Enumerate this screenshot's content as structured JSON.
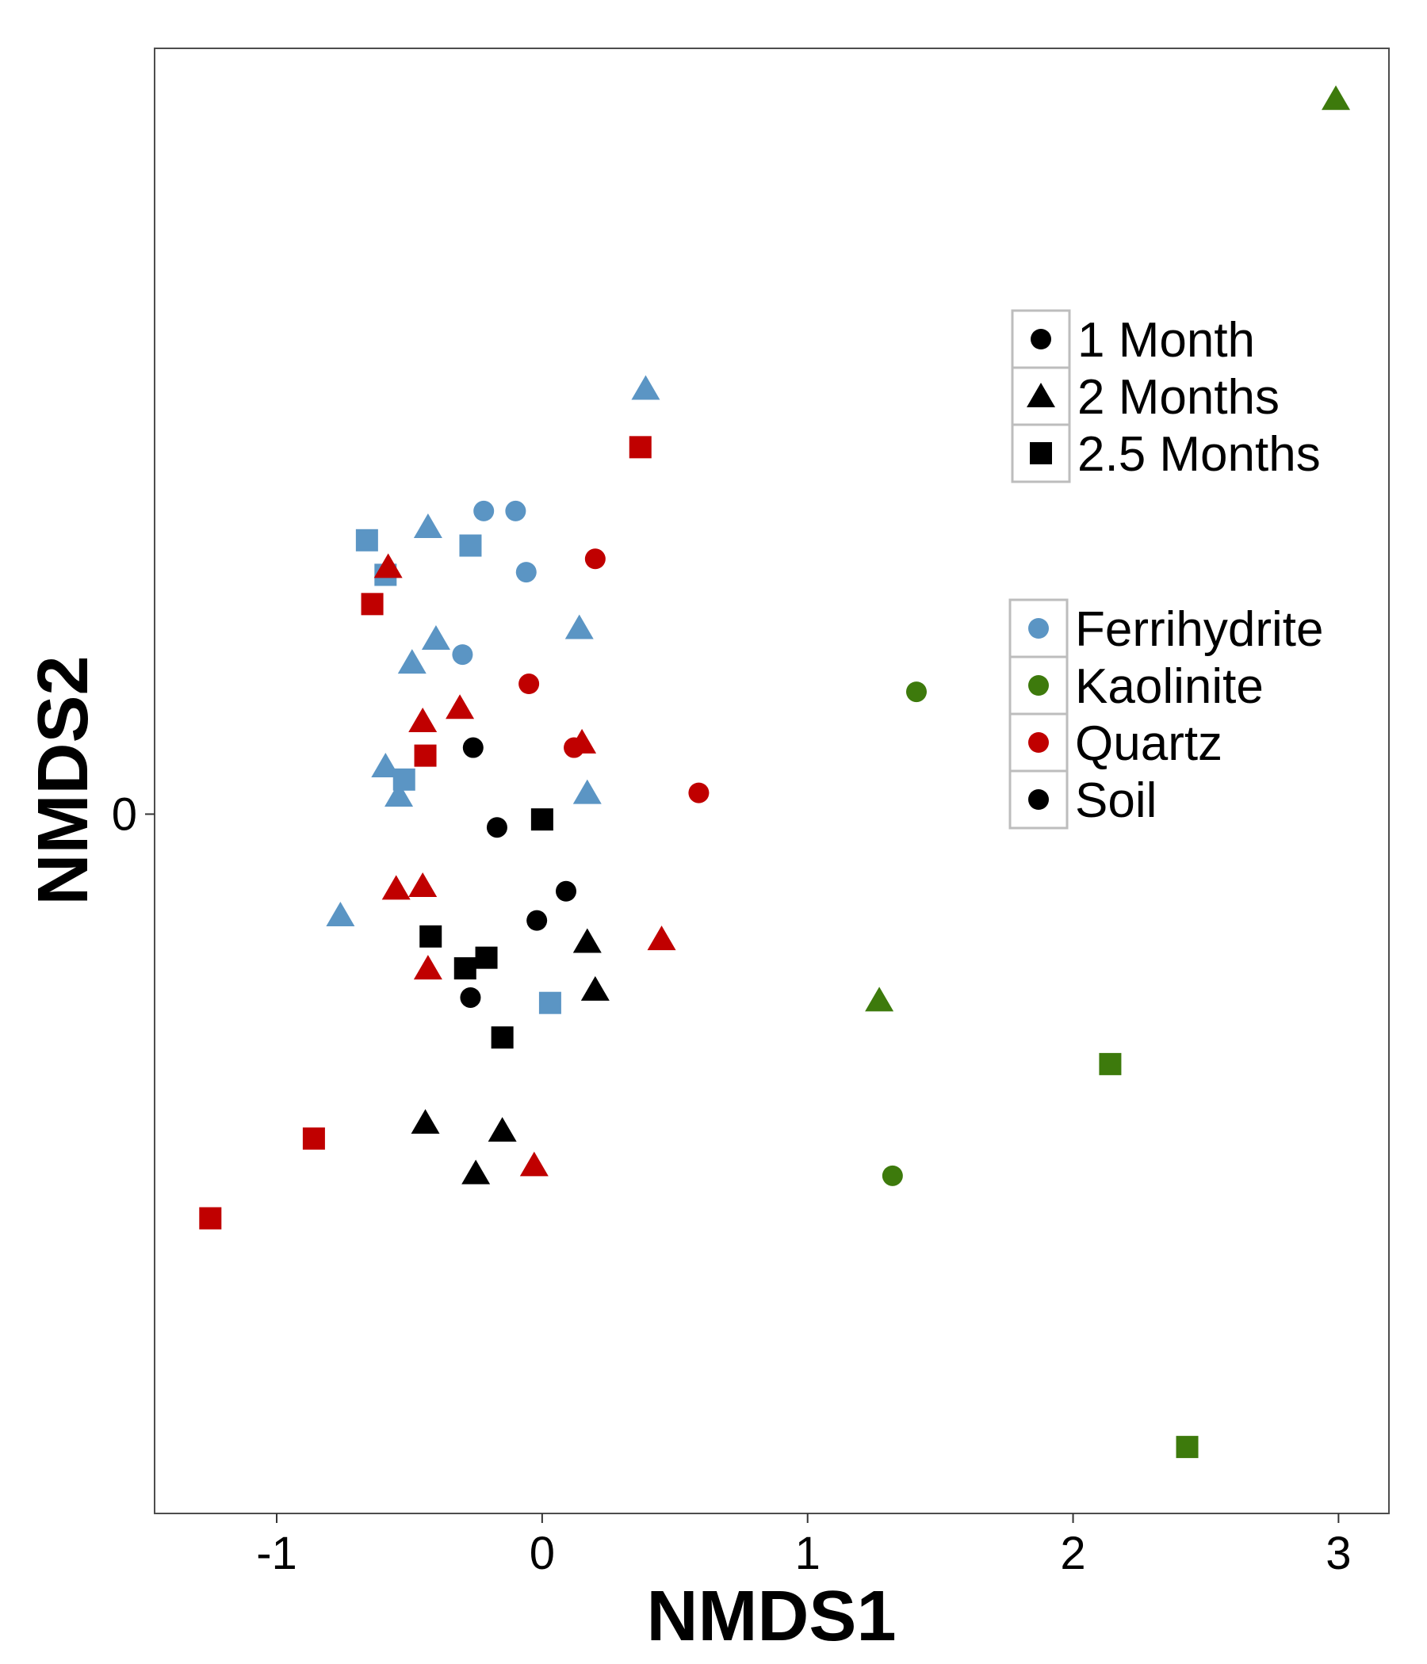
{
  "chart_data": {
    "type": "scatter",
    "xlabel": "NMDS1",
    "ylabel": "NMDS2",
    "xlim": [
      -1.46,
      3.19
    ],
    "ylim": [
      -2.63,
      2.88
    ],
    "xticks": [
      -1,
      0,
      1,
      2,
      3
    ],
    "xtick_labels": [
      "-1",
      "0",
      "1",
      "2",
      "3"
    ],
    "yticks": [
      0
    ],
    "ytick_labels": [
      "0"
    ],
    "grid": false,
    "legend_position": "right",
    "shape_legend": {
      "entries": [
        {
          "label": "1 Month",
          "shape": "circle"
        },
        {
          "label": "2 Months",
          "shape": "triangle"
        },
        {
          "label": "2.5 Months",
          "shape": "square"
        }
      ]
    },
    "color_legend": {
      "entries": [
        {
          "label": "Ferrihydrite",
          "color": "#5b95c4"
        },
        {
          "label": "Kaolinite",
          "color": "#3d7a0c"
        },
        {
          "label": "Quartz",
          "color": "#c00000"
        },
        {
          "label": "Soil",
          "color": "#000000"
        }
      ]
    },
    "series": [
      {
        "name": "Ferrihydrite",
        "color": "#5b95c4",
        "points": [
          {
            "x": -0.22,
            "y": 1.14,
            "shape": "circle"
          },
          {
            "x": -0.1,
            "y": 1.14,
            "shape": "circle"
          },
          {
            "x": -0.06,
            "y": 0.91,
            "shape": "circle"
          },
          {
            "x": -0.3,
            "y": 0.6,
            "shape": "circle"
          },
          {
            "x": 0.39,
            "y": 1.6,
            "shape": "triangle"
          },
          {
            "x": -0.43,
            "y": 1.08,
            "shape": "triangle"
          },
          {
            "x": 0.14,
            "y": 0.7,
            "shape": "triangle"
          },
          {
            "x": -0.4,
            "y": 0.66,
            "shape": "triangle"
          },
          {
            "x": -0.49,
            "y": 0.57,
            "shape": "triangle"
          },
          {
            "x": -0.59,
            "y": 0.18,
            "shape": "triangle"
          },
          {
            "x": -0.54,
            "y": 0.07,
            "shape": "triangle"
          },
          {
            "x": 0.17,
            "y": 0.08,
            "shape": "triangle"
          },
          {
            "x": -0.76,
            "y": -0.38,
            "shape": "triangle"
          },
          {
            "x": -0.66,
            "y": 1.03,
            "shape": "square"
          },
          {
            "x": -0.27,
            "y": 1.01,
            "shape": "square"
          },
          {
            "x": -0.59,
            "y": 0.9,
            "shape": "square"
          },
          {
            "x": -0.52,
            "y": 0.13,
            "shape": "square"
          },
          {
            "x": 0.03,
            "y": -0.71,
            "shape": "square"
          }
        ]
      },
      {
        "name": "Kaolinite",
        "color": "#3d7a0c",
        "points": [
          {
            "x": 1.41,
            "y": 0.46,
            "shape": "circle"
          },
          {
            "x": 1.32,
            "y": -1.36,
            "shape": "circle"
          },
          {
            "x": 2.99,
            "y": 2.69,
            "shape": "triangle"
          },
          {
            "x": 1.27,
            "y": -0.7,
            "shape": "triangle"
          },
          {
            "x": 2.14,
            "y": -0.94,
            "shape": "square"
          },
          {
            "x": 2.43,
            "y": -2.38,
            "shape": "square"
          }
        ]
      },
      {
        "name": "Quartz",
        "color": "#c00000",
        "points": [
          {
            "x": 0.2,
            "y": 0.96,
            "shape": "circle"
          },
          {
            "x": -0.05,
            "y": 0.49,
            "shape": "circle"
          },
          {
            "x": 0.12,
            "y": 0.25,
            "shape": "circle"
          },
          {
            "x": 0.59,
            "y": 0.08,
            "shape": "circle"
          },
          {
            "x": -0.58,
            "y": 0.93,
            "shape": "triangle"
          },
          {
            "x": -0.31,
            "y": 0.4,
            "shape": "triangle"
          },
          {
            "x": -0.45,
            "y": 0.35,
            "shape": "triangle"
          },
          {
            "x": 0.15,
            "y": 0.27,
            "shape": "triangle"
          },
          {
            "x": -0.55,
            "y": -0.28,
            "shape": "triangle"
          },
          {
            "x": -0.45,
            "y": -0.27,
            "shape": "triangle"
          },
          {
            "x": 0.45,
            "y": -0.47,
            "shape": "triangle"
          },
          {
            "x": -0.43,
            "y": -0.58,
            "shape": "triangle"
          },
          {
            "x": -0.03,
            "y": -1.32,
            "shape": "triangle"
          },
          {
            "x": 0.37,
            "y": 1.38,
            "shape": "square"
          },
          {
            "x": -0.64,
            "y": 0.79,
            "shape": "square"
          },
          {
            "x": -0.44,
            "y": 0.22,
            "shape": "square"
          },
          {
            "x": -0.86,
            "y": -1.22,
            "shape": "square"
          },
          {
            "x": -1.25,
            "y": -1.52,
            "shape": "square"
          }
        ]
      },
      {
        "name": "Soil",
        "color": "#000000",
        "points": [
          {
            "x": -0.26,
            "y": 0.25,
            "shape": "circle"
          },
          {
            "x": -0.17,
            "y": -0.05,
            "shape": "circle"
          },
          {
            "x": 0.09,
            "y": -0.29,
            "shape": "circle"
          },
          {
            "x": -0.02,
            "y": -0.4,
            "shape": "circle"
          },
          {
            "x": -0.27,
            "y": -0.69,
            "shape": "circle"
          },
          {
            "x": 0.17,
            "y": -0.48,
            "shape": "triangle"
          },
          {
            "x": 0.2,
            "y": -0.66,
            "shape": "triangle"
          },
          {
            "x": -0.44,
            "y": -1.16,
            "shape": "triangle"
          },
          {
            "x": -0.15,
            "y": -1.19,
            "shape": "triangle"
          },
          {
            "x": -0.25,
            "y": -1.35,
            "shape": "triangle"
          },
          {
            "x": 0.0,
            "y": -0.02,
            "shape": "square"
          },
          {
            "x": -0.42,
            "y": -0.46,
            "shape": "square"
          },
          {
            "x": -0.21,
            "y": -0.54,
            "shape": "square"
          },
          {
            "x": -0.29,
            "y": -0.58,
            "shape": "square"
          },
          {
            "x": -0.15,
            "y": -0.84,
            "shape": "square"
          }
        ]
      }
    ]
  }
}
